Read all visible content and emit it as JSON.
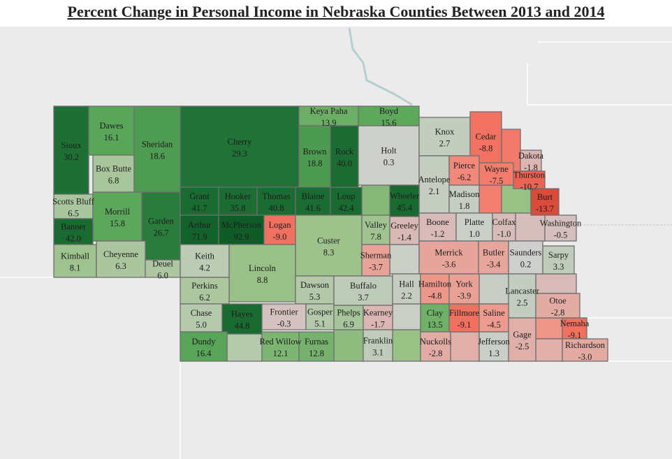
{
  "title": "Percent Change in Personal Income in Nebraska Counties Between 2013 and 2014",
  "legend_colors": {
    "negative": "#d9493a",
    "neutral": "#cccccc",
    "positive": "#17692f"
  },
  "counties": [
    {
      "name": "Sioux",
      "value": "30.2"
    },
    {
      "name": "Dawes",
      "value": "16.1"
    },
    {
      "name": "Box Butte",
      "value": "6.8"
    },
    {
      "name": "Sheridan",
      "value": "18.6"
    },
    {
      "name": "Cherry",
      "value": "29.3"
    },
    {
      "name": "Keya Paha",
      "value": "13.9"
    },
    {
      "name": "Boyd",
      "value": "15.6"
    },
    {
      "name": "Brown",
      "value": "18.8"
    },
    {
      "name": "Rock",
      "value": "40.0"
    },
    {
      "name": "Holt",
      "value": "0.3"
    },
    {
      "name": "Knox",
      "value": "2.7"
    },
    {
      "name": "Cedar",
      "value": "-8.8"
    },
    {
      "name": "Dakota",
      "value": "-1.8"
    },
    {
      "name": "Thurston",
      "value": "-10.7"
    },
    {
      "name": "Burt",
      "value": "-13.7"
    },
    {
      "name": "Antelope",
      "value": "2.1"
    },
    {
      "name": "Pierce",
      "value": "-6.2"
    },
    {
      "name": "Wayne",
      "value": "-7.5"
    },
    {
      "name": "Madison",
      "value": "1.8"
    },
    {
      "name": "Scotts Bluff",
      "value": "6.5"
    },
    {
      "name": "Morrill",
      "value": "15.8"
    },
    {
      "name": "Garden",
      "value": "26.7"
    },
    {
      "name": "Banner",
      "value": "42.0"
    },
    {
      "name": "Kimball",
      "value": "8.1"
    },
    {
      "name": "Cheyenne",
      "value": "6.3"
    },
    {
      "name": "Deuel",
      "value": "6.0"
    },
    {
      "name": "Grant",
      "value": "41.7"
    },
    {
      "name": "Hooker",
      "value": "35.8"
    },
    {
      "name": "Thomas",
      "value": "40.8"
    },
    {
      "name": "Blaine",
      "value": "41.6"
    },
    {
      "name": "Loup",
      "value": "42.4"
    },
    {
      "name": "Wheeler",
      "value": "45.4"
    },
    {
      "name": "Arthur",
      "value": "71.9"
    },
    {
      "name": "McPherson",
      "value": "92.9"
    },
    {
      "name": "Logan",
      "value": "-9.0"
    },
    {
      "name": "Custer",
      "value": "8.3"
    },
    {
      "name": "Valley",
      "value": "7.8"
    },
    {
      "name": "Greeley",
      "value": "-1.4"
    },
    {
      "name": "Boone",
      "value": "-1.2"
    },
    {
      "name": "Platte",
      "value": "1.0"
    },
    {
      "name": "Colfax",
      "value": "-1.0"
    },
    {
      "name": "Washington",
      "value": "-0.5"
    },
    {
      "name": "Keith",
      "value": "4.2"
    },
    {
      "name": "Lincoln",
      "value": "8.8"
    },
    {
      "name": "Sherman",
      "value": "-3.7"
    },
    {
      "name": "Merrick",
      "value": "-3.6"
    },
    {
      "name": "Butler",
      "value": "-3.4"
    },
    {
      "name": "Saunders",
      "value": "0.2"
    },
    {
      "name": "Sarpy",
      "value": "3.3"
    },
    {
      "name": "Perkins",
      "value": "6.2"
    },
    {
      "name": "Dawson",
      "value": "5.3"
    },
    {
      "name": "Buffalo",
      "value": "3.7"
    },
    {
      "name": "Hall",
      "value": "2.2"
    },
    {
      "name": "Hamilton",
      "value": "-4.8"
    },
    {
      "name": "York",
      "value": "-3.9"
    },
    {
      "name": "Lancaster",
      "value": "2.5"
    },
    {
      "name": "Chase",
      "value": "5.0"
    },
    {
      "name": "Hayes",
      "value": "44.8"
    },
    {
      "name": "Frontier",
      "value": "-0.3"
    },
    {
      "name": "Gosper",
      "value": "5.1"
    },
    {
      "name": "Phelps",
      "value": "6.9"
    },
    {
      "name": "Kearney",
      "value": "-1.7"
    },
    {
      "name": "Clay",
      "value": "13.5"
    },
    {
      "name": "Fillmore",
      "value": "-9.1"
    },
    {
      "name": "Saline",
      "value": "-4.5"
    },
    {
      "name": "Otoe",
      "value": "-2.8"
    },
    {
      "name": "Dundy",
      "value": "16.4"
    },
    {
      "name": "Red Willow",
      "value": "12.1"
    },
    {
      "name": "Furnas",
      "value": "12.8"
    },
    {
      "name": "Franklin",
      "value": "3.1"
    },
    {
      "name": "Nuckolls",
      "value": "-2.8"
    },
    {
      "name": "Jefferson",
      "value": "1.3"
    },
    {
      "name": "Gage",
      "value": "-2.5"
    },
    {
      "name": "Nemaha",
      "value": "-9.1"
    },
    {
      "name": "Richardson",
      "value": "-3.0"
    }
  ]
}
